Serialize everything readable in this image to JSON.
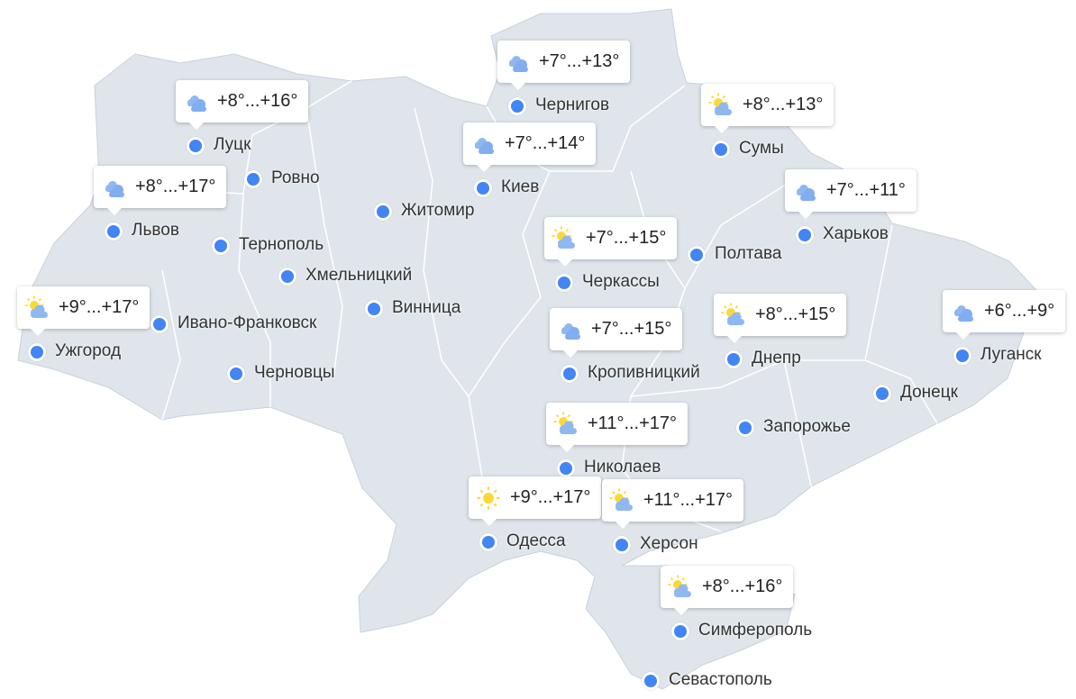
{
  "cities": [
    {
      "name": "Чернигов",
      "forecast": "+7°...+13°",
      "icon": "cloudy"
    },
    {
      "name": "Луцк",
      "forecast": "+8°...+16°",
      "icon": "cloudy"
    },
    {
      "name": "Сумы",
      "forecast": "+8°...+13°",
      "icon": "partly-sunny"
    },
    {
      "name": "Киев",
      "forecast": "+7°...+14°",
      "icon": "cloudy"
    },
    {
      "name": "Ровно"
    },
    {
      "name": "Львов",
      "forecast": "+8°...+17°",
      "icon": "cloudy"
    },
    {
      "name": "Житомир"
    },
    {
      "name": "Харьков",
      "forecast": "+7°...+11°",
      "icon": "cloudy"
    },
    {
      "name": "Тернополь"
    },
    {
      "name": "Черкассы",
      "forecast": "+7°...+15°",
      "icon": "partly-sunny"
    },
    {
      "name": "Полтава"
    },
    {
      "name": "Хмельницкий"
    },
    {
      "name": "Ужгород",
      "forecast": "+9°...+17°",
      "icon": "partly-sunny"
    },
    {
      "name": "Ивано-Франковск"
    },
    {
      "name": "Винница"
    },
    {
      "name": "Днепр",
      "forecast": "+8°...+15°",
      "icon": "partly-sunny"
    },
    {
      "name": "Луганск",
      "forecast": "+6°...+9°",
      "icon": "cloudy"
    },
    {
      "name": "Кропивницкий",
      "forecast": "+7°...+15°",
      "icon": "cloudy"
    },
    {
      "name": "Черновцы"
    },
    {
      "name": "Донецк"
    },
    {
      "name": "Запорожье"
    },
    {
      "name": "Николаев",
      "forecast": "+11°...+17°",
      "icon": "partly-sunny"
    },
    {
      "name": "Одесса",
      "forecast": "+9°...+17°",
      "icon": "sunny"
    },
    {
      "name": "Херсон",
      "forecast": "+11°...+17°",
      "icon": "partly-sunny"
    },
    {
      "name": "Симферополь",
      "forecast": "+8°...+16°",
      "icon": "partly-sunny"
    },
    {
      "name": "Севастополь"
    }
  ],
  "colors": {
    "land": "#dfe5eb",
    "border": "#ffffff",
    "dot": "#4285f4",
    "sun": "#fdd835",
    "cloud": "#90b8f0"
  }
}
